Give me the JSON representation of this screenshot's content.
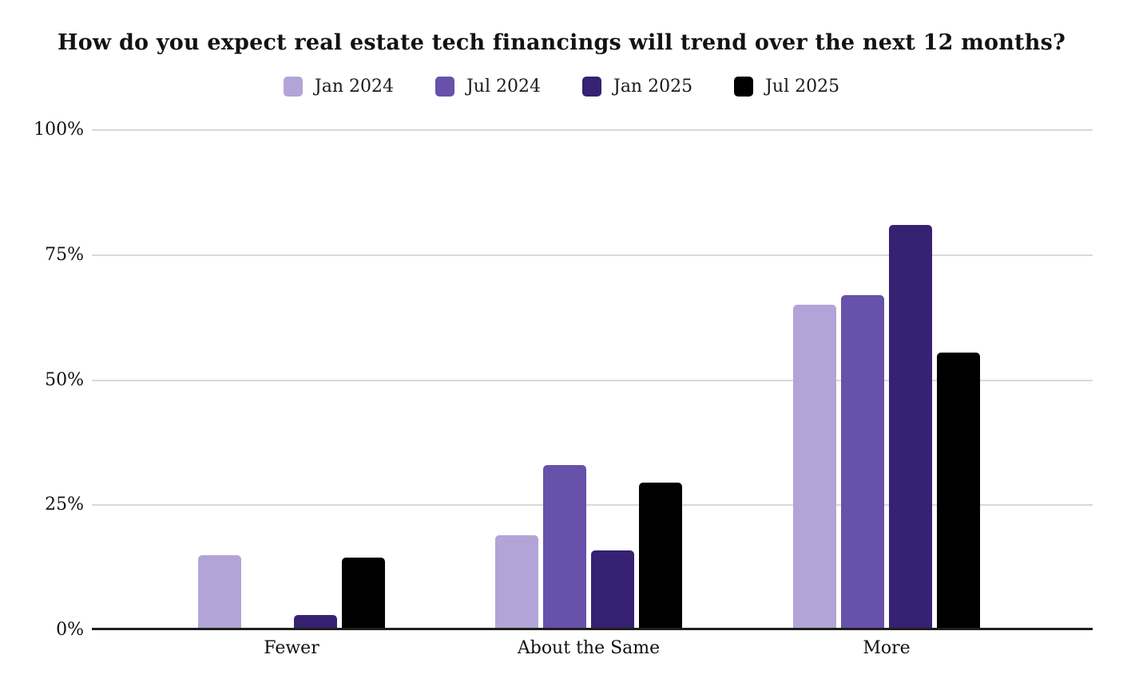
{
  "chart_data": {
    "type": "bar",
    "title": "How do you expect real estate tech financings will trend over the next 12 months?",
    "categories": [
      "Fewer",
      "About the Same",
      "More"
    ],
    "series": [
      {
        "name": "Jan 2024",
        "color": "#b2a4d6",
        "values": [
          15,
          19,
          65
        ]
      },
      {
        "name": "Jul 2024",
        "color": "#6751a9",
        "values": [
          0,
          33,
          67
        ]
      },
      {
        "name": "Jan 2025",
        "color": "#362173",
        "values": [
          3,
          16,
          81
        ]
      },
      {
        "name": "Jul 2025",
        "color": "#000000",
        "values": [
          14.5,
          29.5,
          55.5
        ]
      }
    ],
    "xlabel": "",
    "ylabel": "",
    "ylim": [
      0,
      100
    ],
    "yticks": [
      {
        "value": 0,
        "label": "0%"
      },
      {
        "value": 25,
        "label": "25%"
      },
      {
        "value": 50,
        "label": "50%"
      },
      {
        "value": 75,
        "label": "75%"
      },
      {
        "value": 100,
        "label": "100%"
      }
    ],
    "grid": true,
    "legend_position": "top-center",
    "colors": {
      "gridline": "#d9d9d9",
      "baseline": "#1f1f1f",
      "text": "#111111"
    }
  }
}
